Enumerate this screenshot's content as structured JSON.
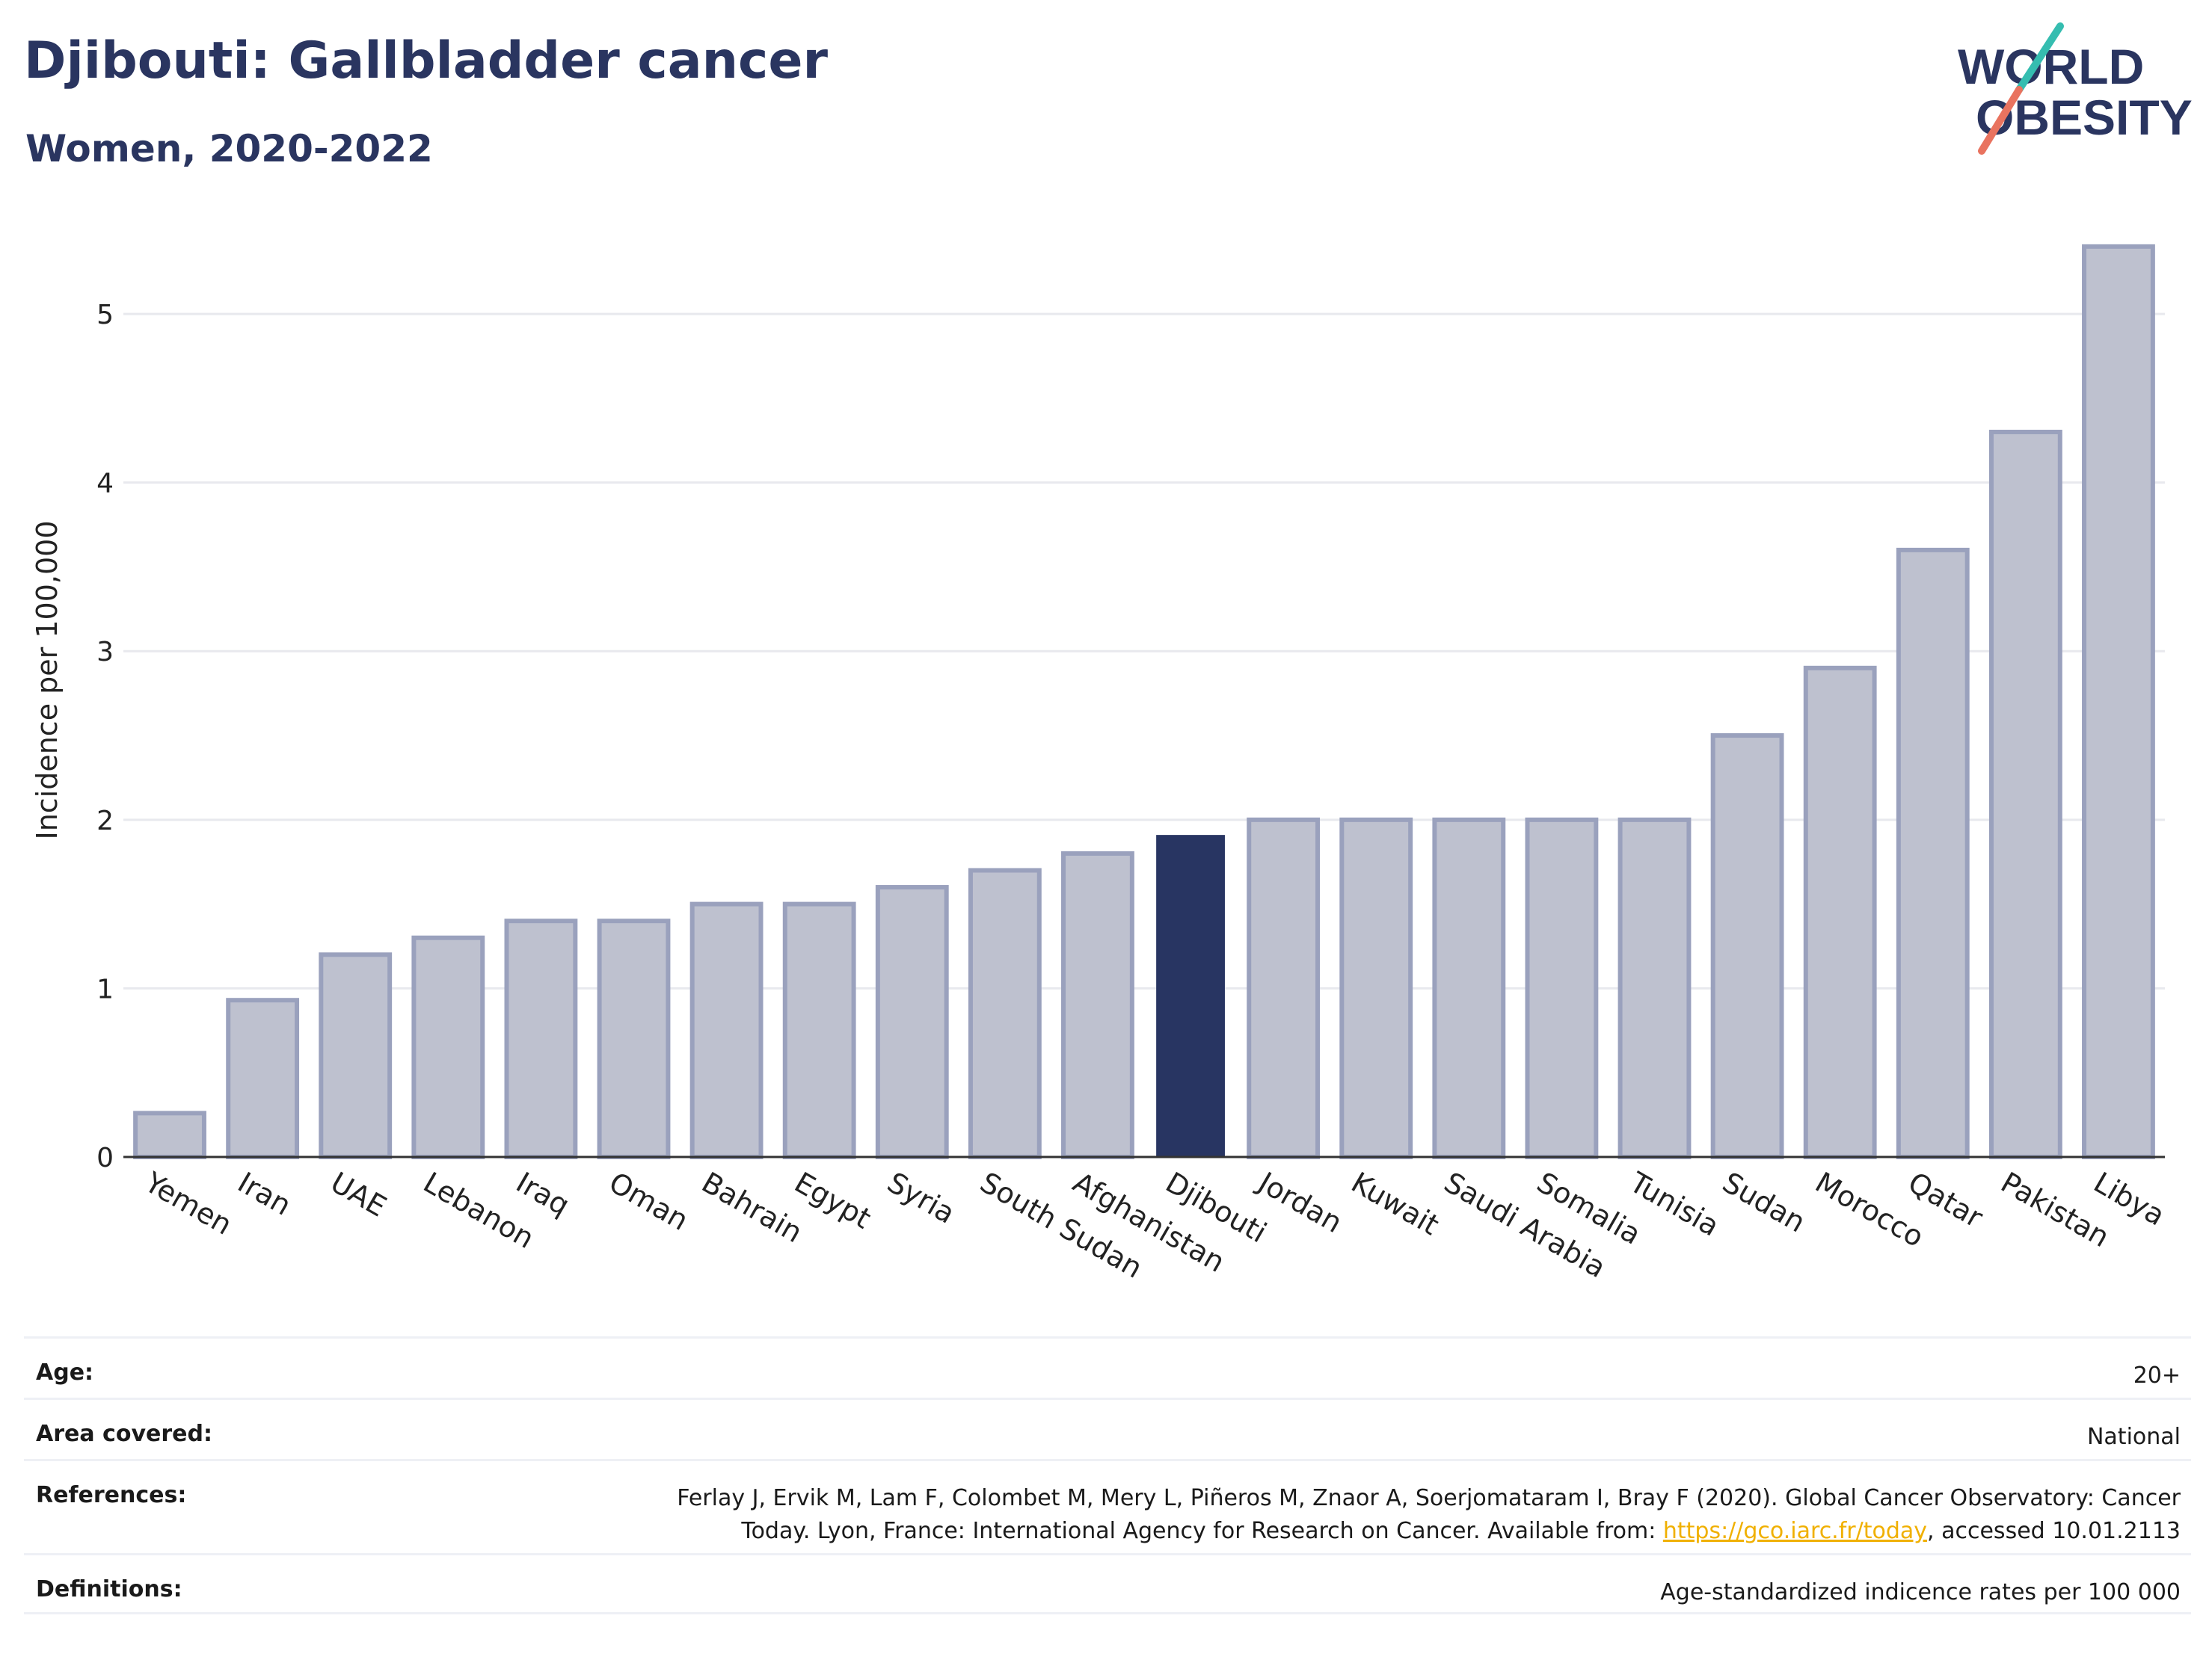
{
  "header": {
    "title": "Djibouti: Gallbladder cancer",
    "subtitle": "Women, 2020-2022"
  },
  "logo": {
    "line1": "WORLD",
    "line2": "OBESITY"
  },
  "chart_data": {
    "type": "bar",
    "title": "Djibouti: Gallbladder cancer",
    "subtitle": "Women, 2020-2022",
    "ylabel": "Incidence per 100,000",
    "xlabel": "",
    "ylim": [
      0,
      5.55
    ],
    "yticks": [
      0,
      1,
      2,
      3,
      4,
      5
    ],
    "grid": true,
    "highlight": "Djibouti",
    "colors": {
      "bar": "#bec1cf",
      "bar_border": "#9aa1bd",
      "highlight": "#283562",
      "grid": "#e8e9ee",
      "axis": "#333333"
    },
    "categories": [
      "Yemen",
      "Iran",
      "UAE",
      "Lebanon",
      "Iraq",
      "Oman",
      "Bahrain",
      "Egypt",
      "Syria",
      "South Sudan",
      "Afghanistan",
      "Djibouti",
      "Jordan",
      "Kuwait",
      "Saudi Arabia",
      "Somalia",
      "Tunisia",
      "Sudan",
      "Morocco",
      "Qatar",
      "Pakistan",
      "Libya"
    ],
    "values": [
      0.26,
      0.93,
      1.2,
      1.3,
      1.4,
      1.4,
      1.5,
      1.5,
      1.6,
      1.7,
      1.8,
      1.91,
      2.0,
      2.0,
      2.0,
      2.0,
      2.0,
      2.5,
      2.9,
      3.6,
      4.3,
      5.4
    ]
  },
  "info": {
    "age_label": "Age:",
    "age_value": "20+",
    "area_label": "Area covered:",
    "area_value": "National",
    "references_label": "References:",
    "references_line1": "Ferlay J, Ervik M, Lam F, Colombet M, Mery L, Piñeros M, Znaor A, Soerjomataram I, Bray F (2020). Global Cancer Observatory: Cancer",
    "references_line2_pre": "Today. Lyon, France: International Agency for Research on Cancer. Available from: ",
    "references_link": "https://gco.iarc.fr/today",
    "references_line2_post": ", accessed 10.01.2113",
    "definitions_label": "Definitions:",
    "definitions_value": "Age-standardized indicence rates per 100 000"
  }
}
